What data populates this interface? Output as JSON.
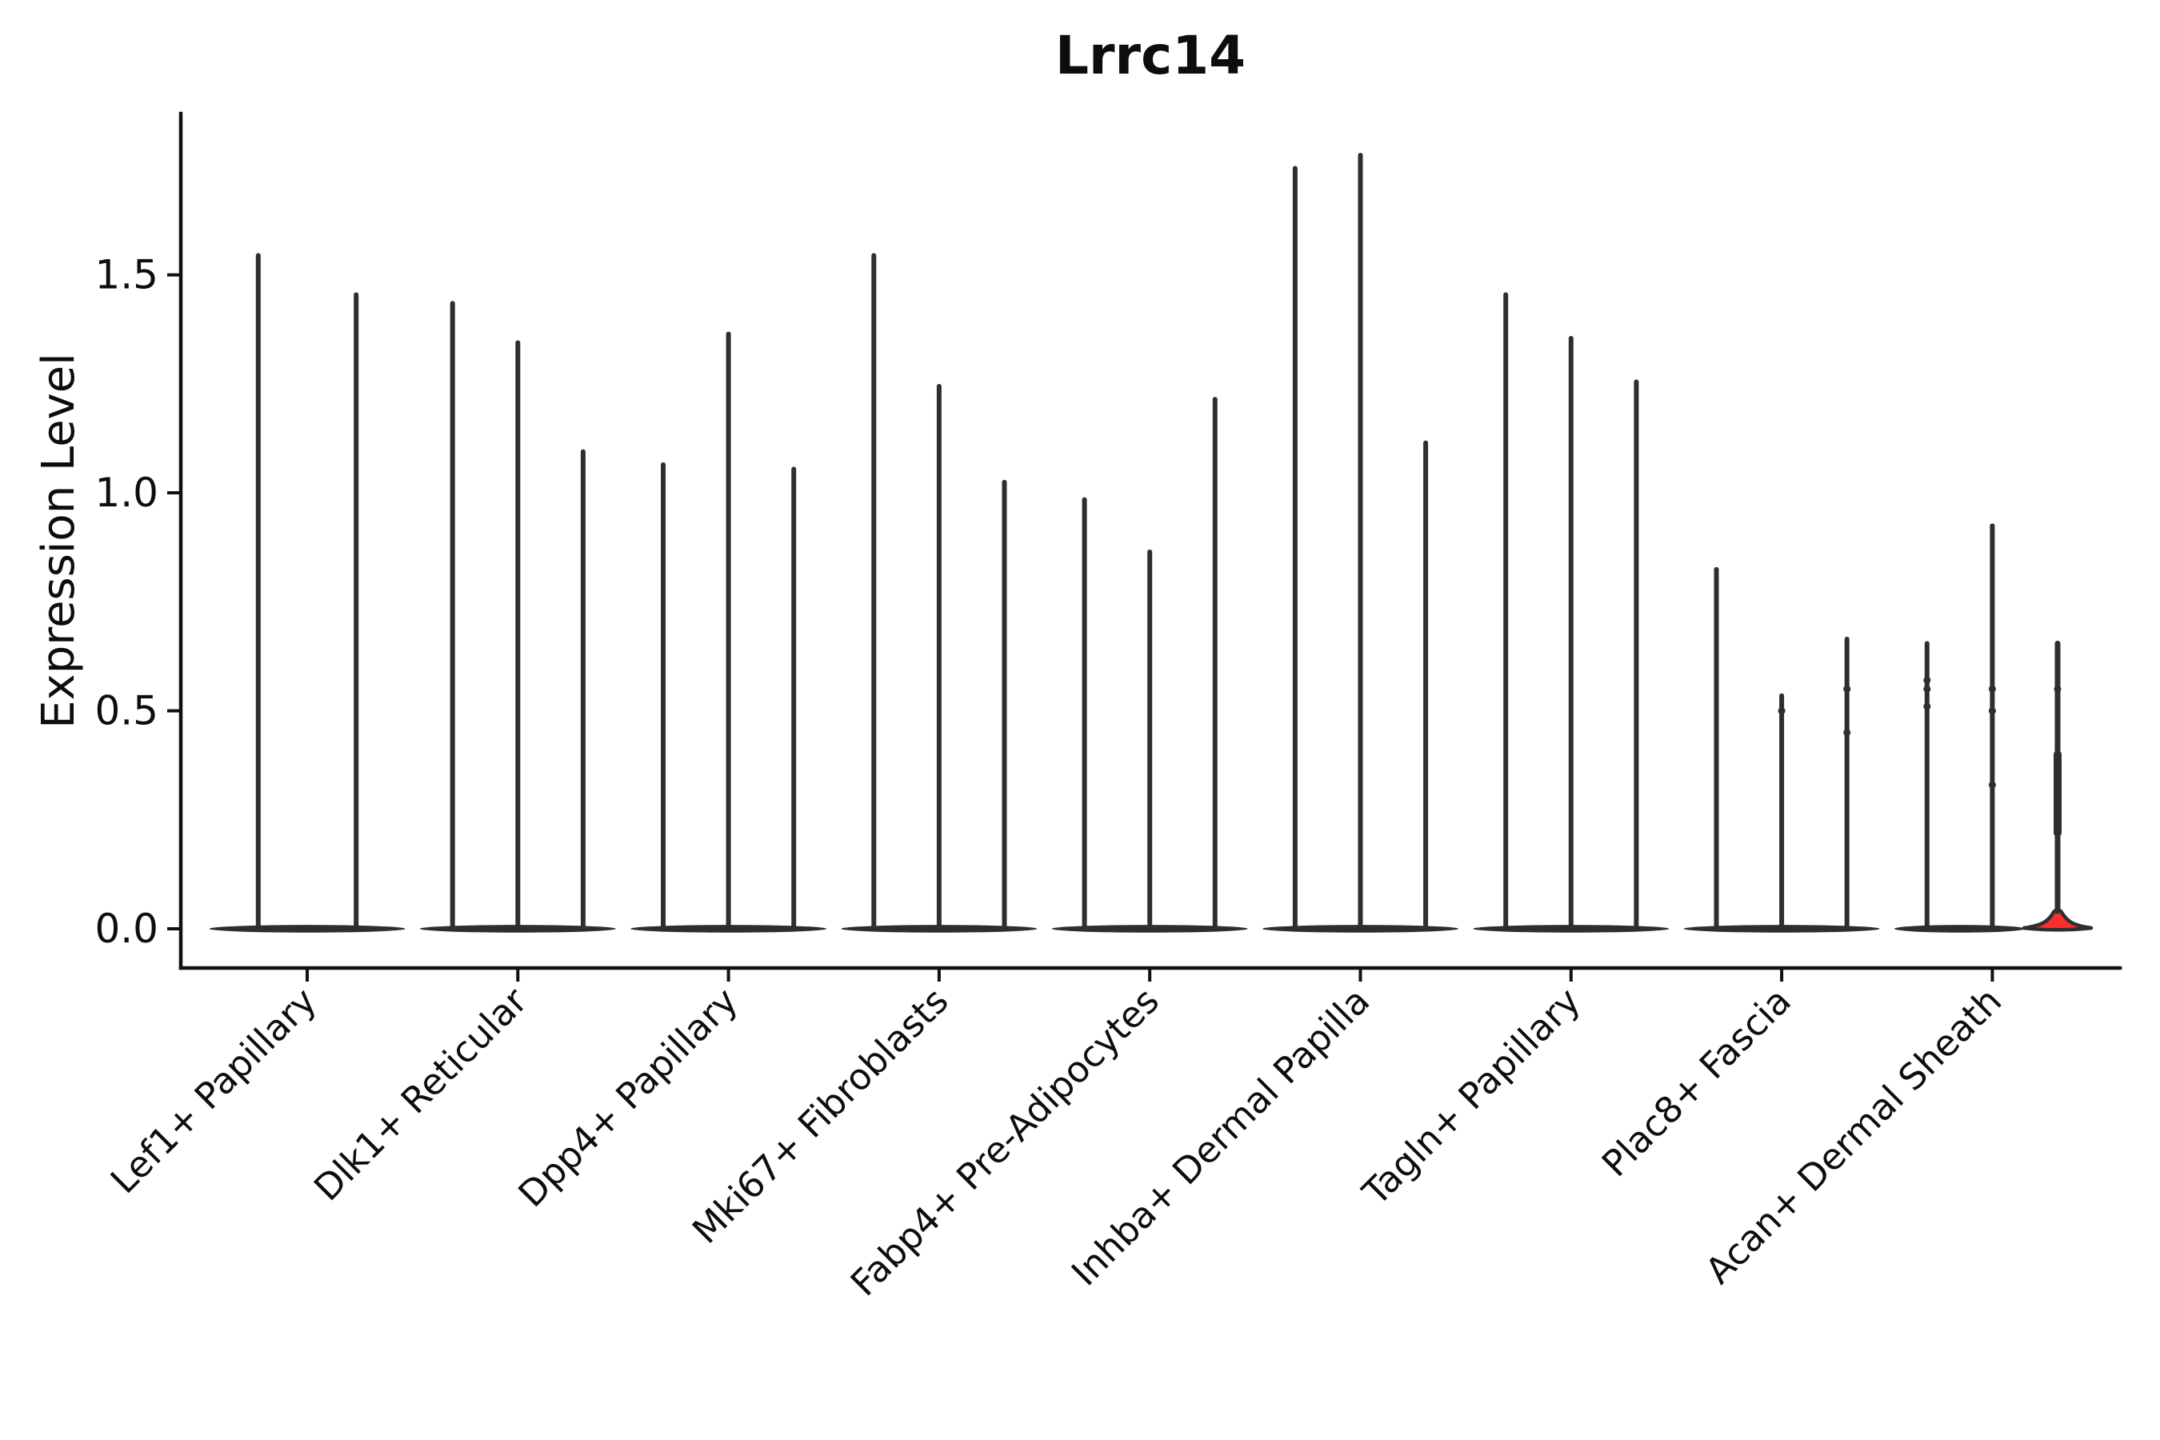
{
  "title": "Lrrc14",
  "ylabel": "Expression Level",
  "colors": {
    "background": "#ffffff",
    "axis_ink": "#111111",
    "violin_ink": "#2e2e2e",
    "highlight_red": "#fb2e2e"
  },
  "chart_data": {
    "type": "violin",
    "title": "Lrrc14",
    "xlabel": "",
    "ylabel": "Expression Level",
    "ylim": [
      -0.09,
      1.87
    ],
    "ytick_labels": [
      "0.0",
      "0.5",
      "1.0",
      "1.5"
    ],
    "ytick_values": [
      0.0,
      0.5,
      1.0,
      1.5
    ],
    "grid": false,
    "legend": "none",
    "description": "Grouped violin plot; each violin is flat at expression 0 with a thin spike up to its maximum expression value. Only the final violin (highlighted red) has visible body width near zero.",
    "categories": [
      "Lef1+ Papillary",
      "Dlk1+ Reticular",
      "Dpp4+ Papillary",
      "Mki67+ Fibroblasts",
      "Fabp4+ Pre-Adipocytes",
      "Inhba+ Dermal Papilla",
      "Tagln+ Papillary",
      "Plac8+ Fascia",
      "Acan+ Dermal Sheath"
    ],
    "groups": [
      {
        "category": "Lef1+ Papillary",
        "violins": [
          {
            "max": 1.55
          },
          {
            "max": 1.46
          }
        ]
      },
      {
        "category": "Dlk1+ Reticular",
        "violins": [
          {
            "max": 1.44
          },
          {
            "max": 1.35
          },
          {
            "max": 1.1
          }
        ]
      },
      {
        "category": "Dpp4+ Papillary",
        "violins": [
          {
            "max": 1.07
          },
          {
            "max": 1.37
          },
          {
            "max": 1.06
          }
        ]
      },
      {
        "category": "Mki67+ Fibroblasts",
        "violins": [
          {
            "max": 1.55
          },
          {
            "max": 1.25
          },
          {
            "max": 1.03
          }
        ]
      },
      {
        "category": "Fabp4+ Pre-Adipocytes",
        "violins": [
          {
            "max": 0.99
          },
          {
            "max": 0.87
          },
          {
            "max": 1.22
          }
        ]
      },
      {
        "category": "Inhba+ Dermal Papilla",
        "violins": [
          {
            "max": 1.75
          },
          {
            "max": 1.78
          },
          {
            "max": 1.12
          }
        ]
      },
      {
        "category": "Tagln+ Papillary",
        "violins": [
          {
            "max": 1.46
          },
          {
            "max": 1.36
          },
          {
            "max": 1.26
          }
        ]
      },
      {
        "category": "Plac8+ Fascia",
        "violins": [
          {
            "max": 0.83
          },
          {
            "max": 0.54,
            "dots": [
              0.5
            ]
          },
          {
            "max": 0.67,
            "dots": [
              0.55,
              0.45
            ]
          }
        ]
      },
      {
        "category": "Acan+ Dermal Sheath",
        "violins": [
          {
            "max": 0.66,
            "dots": [
              0.57,
              0.55,
              0.51
            ]
          },
          {
            "max": 0.93,
            "dots": [
              0.55,
              0.5,
              0.33
            ]
          },
          {
            "max": 0.66,
            "dots": [
              0.55,
              0.33
            ],
            "highlight": true,
            "base_peak": 0.035
          }
        ]
      }
    ],
    "highlight_color": "#fb2e2e",
    "baseline_value": 0.0
  }
}
